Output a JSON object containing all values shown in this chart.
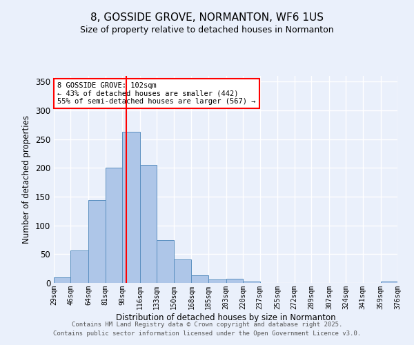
{
  "title1": "8, GOSSIDE GROVE, NORMANTON, WF6 1US",
  "title2": "Size of property relative to detached houses in Normanton",
  "xlabel": "Distribution of detached houses by size in Normanton",
  "ylabel": "Number of detached properties",
  "bins": [
    29,
    46,
    64,
    81,
    98,
    116,
    133,
    150,
    168,
    185,
    203,
    220,
    237,
    255,
    272,
    289,
    307,
    324,
    341,
    359,
    376
  ],
  "heights": [
    10,
    57,
    144,
    201,
    263,
    205,
    74,
    41,
    13,
    6,
    7,
    3,
    0,
    0,
    0,
    0,
    0,
    0,
    0,
    3
  ],
  "bar_color": "#aec6e8",
  "bar_edge_color": "#5a8fc0",
  "bg_color": "#eaf0fb",
  "grid_color": "#ffffff",
  "vline_x": 102,
  "vline_color": "red",
  "annotation_text": "8 GOSSIDE GROVE: 102sqm\n← 43% of detached houses are smaller (442)\n55% of semi-detached houses are larger (567) →",
  "annotation_box_color": "white",
  "annotation_box_edge": "red",
  "footer1": "Contains HM Land Registry data © Crown copyright and database right 2025.",
  "footer2": "Contains public sector information licensed under the Open Government Licence v3.0.",
  "ylim": [
    0,
    360
  ],
  "yticks": [
    0,
    50,
    100,
    150,
    200,
    250,
    300,
    350
  ],
  "tick_labels": [
    "29sqm",
    "46sqm",
    "64sqm",
    "81sqm",
    "98sqm",
    "116sqm",
    "133sqm",
    "150sqm",
    "168sqm",
    "185sqm",
    "203sqm",
    "220sqm",
    "237sqm",
    "255sqm",
    "272sqm",
    "289sqm",
    "307sqm",
    "324sqm",
    "341sqm",
    "359sqm",
    "376sqm"
  ]
}
